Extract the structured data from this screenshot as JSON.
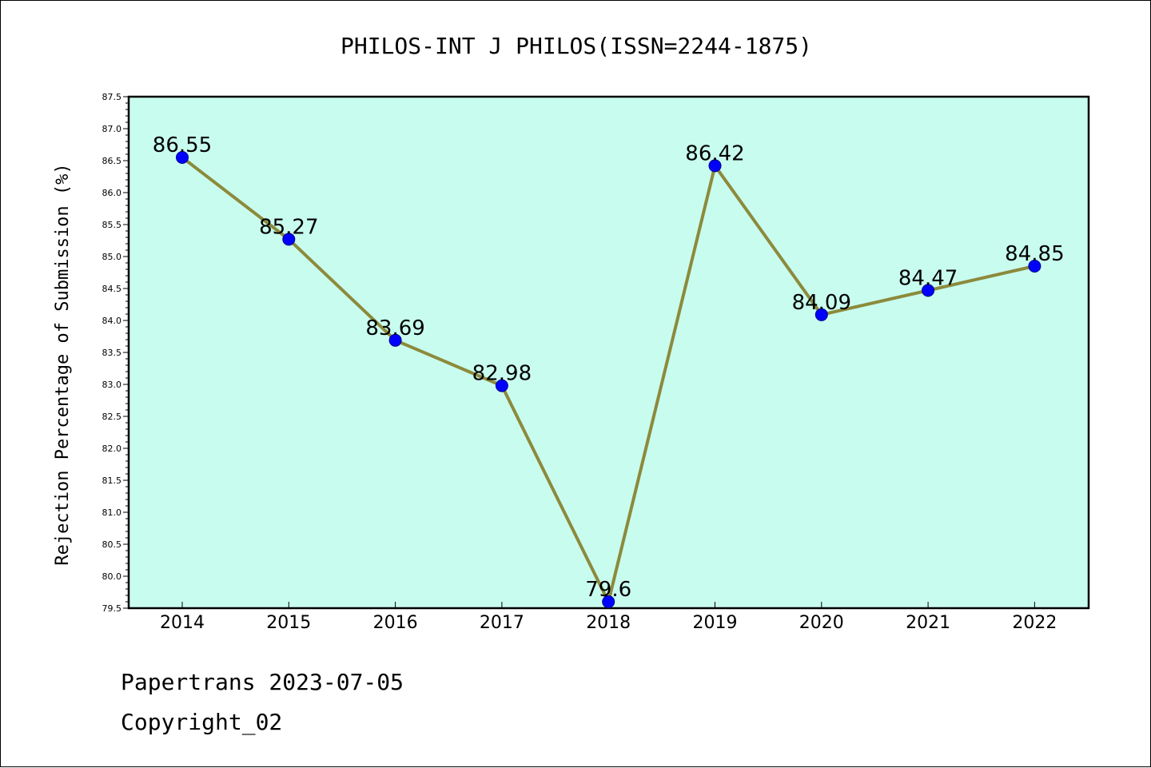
{
  "chart_data": {
    "type": "line",
    "title": "PHILOS-INT J PHILOS(ISSN=2244-1875)",
    "ylabel": "Rejection Percentage of Submission (%)",
    "xlabel": "",
    "categories": [
      "2014",
      "2015",
      "2016",
      "2017",
      "2018",
      "2019",
      "2020",
      "2021",
      "2022"
    ],
    "series": [
      {
        "values": [
          86.55,
          85.27,
          83.69,
          82.98,
          79.6,
          86.42,
          84.09,
          84.47,
          84.85
        ],
        "labels": [
          "86.55",
          "85.27",
          "83.69",
          "82.98",
          "79.6",
          "86.42",
          "84.09",
          "84.47",
          "84.85"
        ]
      }
    ],
    "ylim": [
      79.5,
      87.5
    ],
    "yticks": [
      "79.5",
      "80.0",
      "80.5",
      "81.0",
      "81.5",
      "82.0",
      "82.5",
      "83.0",
      "83.5",
      "84.0",
      "84.5",
      "85.0",
      "85.5",
      "86.0",
      "86.5",
      "87.0",
      "87.5"
    ],
    "grid": false,
    "legend": "none",
    "colors": {
      "plot_background": "#c8fcee",
      "line": "#8c8a3c",
      "marker": "#0000ff",
      "marker_edge": "#00008b"
    }
  },
  "footer": {
    "line1": "Papertrans 2023-07-05",
    "line2": "Copyright_02"
  }
}
